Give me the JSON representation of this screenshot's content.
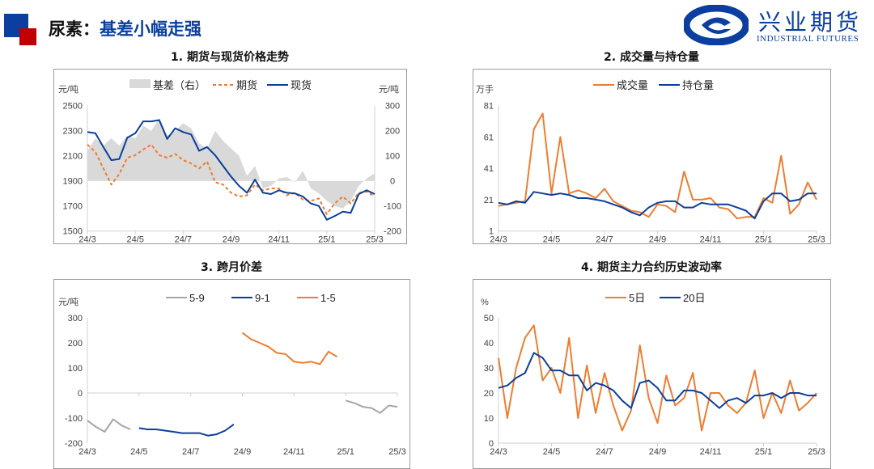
{
  "header": {
    "prefix": "尿素：",
    "headline": "基差小幅走强"
  },
  "logo": {
    "cn": "兴业期货",
    "en": "INDUSTRIAL FUTURES"
  },
  "colors": {
    "brand_blue": "#0a3fa0",
    "brand_red": "#c00000",
    "orange": "#ed7d31",
    "navy": "#0b3f9b",
    "gray": "#a6a6a6",
    "area_gray": "#d9d9d9"
  },
  "chart_data": [
    {
      "title": "1. 期货与现货价格走势",
      "type": "line",
      "ylabel": "元/吨",
      "y2label": "元/吨",
      "ylim": [
        1500,
        2500
      ],
      "y2lim": [
        -200,
        300
      ],
      "yticks": [
        "2500",
        "2300",
        "2100",
        "1900",
        "1700",
        "1500"
      ],
      "y2ticks": [
        "300",
        "200",
        "100",
        "0",
        "-100",
        "-200"
      ],
      "xticks": [
        "24/3",
        "24/5",
        "24/7",
        "24/9",
        "24/11",
        "25/1",
        "25/3"
      ],
      "legend": "top",
      "x": [
        "2024-03-01",
        "2024-03-11",
        "2024-03-21",
        "2024-04-01",
        "2024-04-11",
        "2024-04-21",
        "2024-05-01",
        "2024-05-11",
        "2024-05-21",
        "2024-06-01",
        "2024-06-11",
        "2024-06-21",
        "2024-07-01",
        "2024-07-11",
        "2024-07-21",
        "2024-08-01",
        "2024-08-11",
        "2024-08-21",
        "2024-09-01",
        "2024-09-11",
        "2024-09-21",
        "2024-10-01",
        "2024-10-11",
        "2024-10-21",
        "2024-11-01",
        "2024-11-11",
        "2024-11-21",
        "2024-12-01",
        "2024-12-11",
        "2024-12-21",
        "2025-01-01",
        "2025-01-11",
        "2025-01-21",
        "2025-02-01",
        "2025-02-11",
        "2025-02-21",
        "2025-03-01"
      ],
      "series": [
        {
          "name": "基差（右）",
          "style": "area",
          "axis": "right",
          "color": "#d9d9d9",
          "values": [
            120,
            170,
            140,
            170,
            140,
            180,
            170,
            220,
            200,
            250,
            180,
            200,
            230,
            210,
            150,
            130,
            200,
            160,
            130,
            100,
            20,
            60,
            -30,
            -20,
            10,
            15,
            -5,
            40,
            -30,
            -50,
            -80,
            -100,
            -110,
            -80,
            -20,
            10,
            30
          ]
        },
        {
          "name": "期货",
          "style": "dashed",
          "axis": "left",
          "color": "#ed7d31",
          "values": [
            2190,
            2130,
            2000,
            1870,
            1955,
            2085,
            2105,
            2150,
            2190,
            2105,
            2085,
            2115,
            2065,
            2040,
            2000,
            2055,
            1890,
            1870,
            1805,
            1775,
            1785,
            1870,
            1825,
            1840,
            1840,
            1785,
            1805,
            1750,
            1740,
            1760,
            1635,
            1720,
            1775,
            1720,
            1805,
            1815,
            1775
          ]
        },
        {
          "name": "现货",
          "style": "solid",
          "axis": "left",
          "color": "#0b3f9b",
          "values": [
            2290,
            2280,
            2170,
            2065,
            2075,
            2245,
            2280,
            2375,
            2375,
            2385,
            2235,
            2320,
            2290,
            2270,
            2140,
            2170,
            2105,
            2020,
            1935,
            1860,
            1805,
            1910,
            1805,
            1795,
            1825,
            1805,
            1800,
            1775,
            1720,
            1700,
            1590,
            1620,
            1655,
            1645,
            1795,
            1825,
            1795
          ]
        }
      ]
    },
    {
      "title": "2. 成交量与持仓量",
      "type": "line",
      "ylabel": "万手",
      "ylim": [
        1,
        81
      ],
      "yticks": [
        "81",
        "61",
        "41",
        "21",
        "1"
      ],
      "xticks": [
        "24/3",
        "24/5",
        "24/7",
        "24/9",
        "24/11",
        "25/1",
        "25/3"
      ],
      "legend": "top",
      "x": [
        "2024-03-01",
        "2024-03-11",
        "2024-03-21",
        "2024-04-01",
        "2024-04-11",
        "2024-04-21",
        "2024-05-01",
        "2024-05-11",
        "2024-05-21",
        "2024-06-01",
        "2024-06-11",
        "2024-06-21",
        "2024-07-01",
        "2024-07-11",
        "2024-07-21",
        "2024-08-01",
        "2024-08-11",
        "2024-08-21",
        "2024-09-01",
        "2024-09-11",
        "2024-09-21",
        "2024-10-01",
        "2024-10-11",
        "2024-10-21",
        "2024-11-01",
        "2024-11-11",
        "2024-11-21",
        "2024-12-01",
        "2024-12-11",
        "2024-12-21",
        "2025-01-01",
        "2025-01-11",
        "2025-01-21",
        "2025-02-01",
        "2025-02-11",
        "2025-02-21",
        "2025-03-01"
      ],
      "series": [
        {
          "name": "成交量",
          "style": "solid",
          "color": "#ed7d31",
          "values": [
            17,
            18,
            19,
            20,
            66,
            76,
            25,
            61,
            25,
            27,
            25,
            22,
            28,
            20,
            17,
            14,
            13,
            10,
            18,
            17,
            13,
            39,
            21,
            21,
            22,
            16,
            15,
            9,
            10,
            10,
            22,
            19,
            49,
            12,
            18,
            32,
            21
          ]
        },
        {
          "name": "持仓量",
          "style": "solid",
          "color": "#0b3f9b",
          "values": [
            19,
            18,
            20,
            19,
            26,
            25,
            24,
            25,
            24,
            22,
            22,
            21,
            20,
            18,
            16,
            13,
            11,
            16,
            19,
            20,
            20,
            16,
            16,
            19,
            18,
            18,
            18,
            16,
            14,
            9,
            20,
            25,
            25,
            20,
            21,
            25,
            25
          ]
        }
      ]
    },
    {
      "title": "3. 跨月价差",
      "type": "line",
      "ylabel": "元/吨",
      "ylim": [
        -200,
        300
      ],
      "yticks": [
        "300",
        "200",
        "100",
        "0",
        "-100",
        "-200"
      ],
      "xticks": [
        "24/3",
        "24/5",
        "24/7",
        "24/9",
        "24/11",
        "25/1",
        "25/3"
      ],
      "legend": "top",
      "x": [
        "2024-03-01",
        "2024-03-11",
        "2024-03-21",
        "2024-04-01",
        "2024-04-11",
        "2024-04-21",
        "2024-05-01",
        "2024-05-11",
        "2024-05-21",
        "2024-06-01",
        "2024-06-11",
        "2024-06-21",
        "2024-07-01",
        "2024-07-11",
        "2024-07-21",
        "2024-08-01",
        "2024-08-11",
        "2024-08-21",
        "2024-09-01",
        "2024-09-11",
        "2024-09-21",
        "2024-10-01",
        "2024-10-11",
        "2024-10-21",
        "2024-11-01",
        "2024-11-11",
        "2024-11-21",
        "2024-12-01",
        "2024-12-11",
        "2024-12-21",
        "2025-01-01",
        "2025-01-11",
        "2025-01-21",
        "2025-02-01",
        "2025-02-11",
        "2025-02-21",
        "2025-03-01"
      ],
      "series": [
        {
          "name": "5-9",
          "style": "solid",
          "color": "#a6a6a6",
          "values": [
            -110,
            -135,
            -155,
            -105,
            -130,
            -145,
            null,
            null,
            null,
            null,
            null,
            null,
            null,
            null,
            null,
            null,
            null,
            null,
            null,
            null,
            null,
            null,
            null,
            null,
            null,
            null,
            null,
            null,
            null,
            null,
            -30,
            -40,
            -55,
            -60,
            -80,
            -50,
            -55
          ]
        },
        {
          "name": "9-1",
          "style": "solid",
          "color": "#0b3f9b",
          "values": [
            null,
            null,
            null,
            null,
            null,
            null,
            -140,
            -145,
            -145,
            -150,
            -155,
            -160,
            -160,
            -160,
            -170,
            -165,
            -150,
            -125,
            null,
            null,
            null,
            null,
            null,
            null,
            null,
            null,
            null,
            null,
            null,
            null,
            null,
            null,
            null,
            null,
            null,
            null,
            null
          ]
        },
        {
          "name": "1-5",
          "style": "solid",
          "color": "#ed7d31",
          "values": [
            null,
            null,
            null,
            null,
            null,
            null,
            null,
            null,
            null,
            null,
            null,
            null,
            null,
            null,
            null,
            null,
            null,
            null,
            240,
            215,
            200,
            185,
            160,
            155,
            125,
            120,
            125,
            115,
            165,
            145,
            null,
            null,
            null,
            null,
            null,
            null,
            null
          ]
        }
      ]
    },
    {
      "title": "4. 期货主力合约历史波动率",
      "type": "line",
      "ylabel": "%",
      "ylim": [
        0,
        50
      ],
      "yticks": [
        "50",
        "40",
        "30",
        "20",
        "10",
        "0"
      ],
      "xticks": [
        "24/3",
        "24/5",
        "24/7",
        "24/9",
        "24/11",
        "25/1",
        "25/3"
      ],
      "legend": "top",
      "x": [
        "2024-03-01",
        "2024-03-11",
        "2024-03-21",
        "2024-04-01",
        "2024-04-11",
        "2024-04-21",
        "2024-05-01",
        "2024-05-11",
        "2024-05-21",
        "2024-06-01",
        "2024-06-11",
        "2024-06-21",
        "2024-07-01",
        "2024-07-11",
        "2024-07-21",
        "2024-08-01",
        "2024-08-11",
        "2024-08-21",
        "2024-09-01",
        "2024-09-11",
        "2024-09-21",
        "2024-10-01",
        "2024-10-11",
        "2024-10-21",
        "2024-11-01",
        "2024-11-11",
        "2024-11-21",
        "2024-12-01",
        "2024-12-11",
        "2024-12-21",
        "2025-01-01",
        "2025-01-11",
        "2025-01-21",
        "2025-02-01",
        "2025-02-11",
        "2025-02-21",
        "2025-03-01"
      ],
      "series": [
        {
          "name": "5日",
          "style": "solid",
          "color": "#ed7d31",
          "values": [
            34,
            10,
            30,
            42,
            47,
            25,
            30,
            20,
            42,
            10,
            31,
            12,
            28,
            15,
            5,
            13,
            39,
            18,
            8,
            27,
            15,
            18,
            28,
            5,
            20,
            20,
            15,
            12,
            16,
            29,
            10,
            20,
            12,
            25,
            13,
            16,
            20
          ]
        },
        {
          "name": "20日",
          "style": "solid",
          "color": "#0b3f9b",
          "values": [
            22,
            23,
            26,
            28,
            36,
            34,
            29,
            29,
            27,
            27,
            21,
            24,
            23,
            21,
            17,
            14,
            24,
            25,
            22,
            17,
            17,
            21,
            21,
            20,
            17,
            14,
            17,
            18,
            16,
            19,
            19,
            20,
            18,
            20,
            20,
            19,
            19
          ]
        }
      ]
    }
  ]
}
